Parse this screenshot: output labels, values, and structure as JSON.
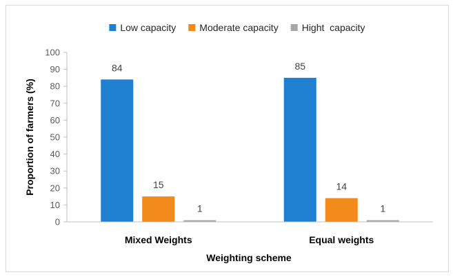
{
  "chart_data": {
    "type": "bar",
    "categories": [
      "Mixed Weights",
      "Equal weights"
    ],
    "series": [
      {
        "name": "Low capacity",
        "values": [
          84,
          85
        ],
        "color": "#1f7fd0"
      },
      {
        "name": "Moderate capacity",
        "values": [
          15,
          14
        ],
        "color": "#f28a1c"
      },
      {
        "name": "Hight  capacity",
        "values": [
          1,
          1
        ],
        "color": "#a6a6a6"
      }
    ],
    "title": "",
    "xlabel": "Weighting scheme",
    "ylabel": "Proportion of farmers (%)",
    "ylim": [
      0,
      100
    ],
    "yticks": [
      0,
      10,
      20,
      30,
      40,
      50,
      60,
      70,
      80,
      90,
      100
    ],
    "grid": false,
    "legend_position": "top",
    "data_labels": true
  }
}
